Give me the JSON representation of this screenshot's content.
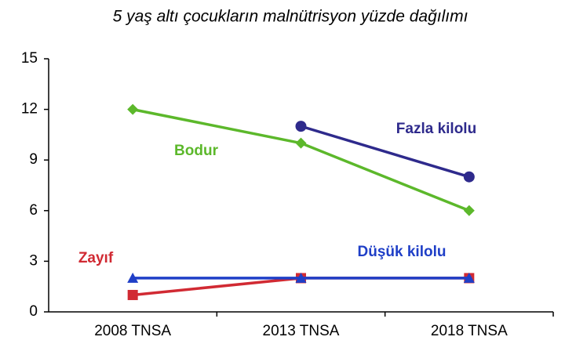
{
  "chart_data": {
    "type": "line",
    "title": "5 yaş altı çocukların malnütrisyon yüzde dağılımı",
    "categories": [
      "2008 TNSA",
      "2013 TNSA",
      "2018 TNSA"
    ],
    "series": [
      {
        "name": "Bodur",
        "color": "#5cb82b",
        "marker": "diamond",
        "values": [
          12,
          10,
          6
        ]
      },
      {
        "name": "Fazla kilolu",
        "color": "#2e2a8c",
        "marker": "circle",
        "values": [
          null,
          11,
          8
        ]
      },
      {
        "name": "Zayıf",
        "color": "#d12a33",
        "marker": "square",
        "values": [
          1,
          2,
          2
        ]
      },
      {
        "name": "Düşük kilolu",
        "color": "#1f3fc7",
        "marker": "triangle",
        "values": [
          2,
          2,
          2
        ]
      }
    ],
    "ylim": [
      0,
      15
    ],
    "yticks": [
      0,
      3,
      6,
      9,
      12,
      15
    ],
    "grid": false
  }
}
